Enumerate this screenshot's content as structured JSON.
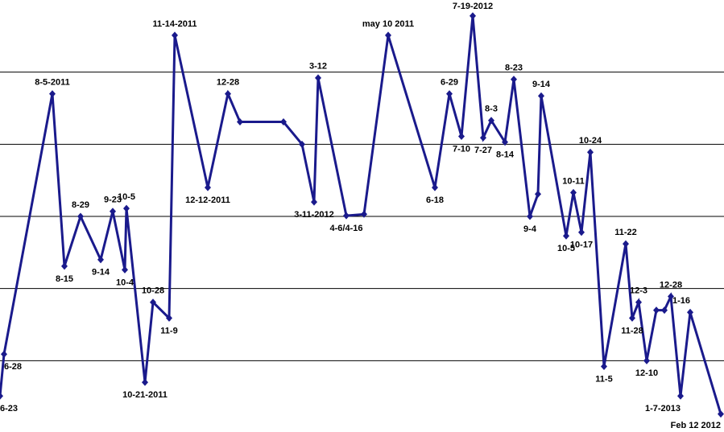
{
  "chart_data": {
    "type": "line",
    "x": [
      0,
      5,
      65,
      80,
      100,
      125,
      140,
      155,
      157,
      180,
      190,
      210,
      217,
      258,
      283,
      298,
      352,
      375,
      390,
      395,
      430,
      452,
      482,
      540,
      558,
      573,
      587,
      600,
      610,
      627,
      638,
      658,
      668,
      672,
      703,
      712,
      722,
      733,
      750,
      777,
      785,
      793,
      803,
      815,
      825,
      833,
      845,
      857,
      895
    ],
    "values": [
      0.51,
      1.09,
      4.7,
      2.31,
      3.0,
      2.4,
      3.07,
      2.26,
      3.11,
      0.7,
      1.81,
      1.59,
      5.51,
      3.4,
      4.7,
      4.31,
      4.31,
      4.0,
      3.2,
      4.92,
      3.01,
      3.03,
      5.51,
      3.4,
      4.7,
      4.11,
      5.78,
      4.09,
      4.33,
      4.03,
      4.9,
      3.0,
      3.31,
      4.67,
      2.73,
      3.33,
      2.78,
      3.89,
      0.92,
      2.62,
      1.59,
      1.81,
      1.0,
      1.7,
      1.7,
      1.89,
      0.51,
      1.67,
      0.26
    ],
    "labels": [
      "6-23",
      "6-28",
      "8-5-2011",
      "8-15",
      "8-29",
      "9-14",
      "9-23",
      "10-4",
      "10-5",
      "10-21-2011",
      "10-28",
      "11-9",
      "11-14-2011",
      "12-12-2011",
      "12-28",
      null,
      null,
      null,
      "3-11-2012",
      "3-12",
      "4-6/4-16",
      null,
      "may 10 2011",
      "6-18",
      "6-29",
      "7-10",
      "7-19-2012",
      "7-27",
      "8-3",
      "8-14",
      "8-23",
      "9-4",
      null,
      "9-14",
      "10-5",
      "10-11",
      "10-17",
      "10-24",
      "11-5",
      "11-22",
      "11-28",
      "12-3",
      "12-10",
      null,
      null,
      "12-28",
      "1-7-2013",
      "1-16",
      "Feb 12 2012"
    ],
    "color": "#1a1a8c",
    "xlim": [
      0,
      899
    ],
    "ylim": [
      0,
      6
    ],
    "gridlines": [
      1,
      2,
      3,
      4,
      5
    ]
  }
}
